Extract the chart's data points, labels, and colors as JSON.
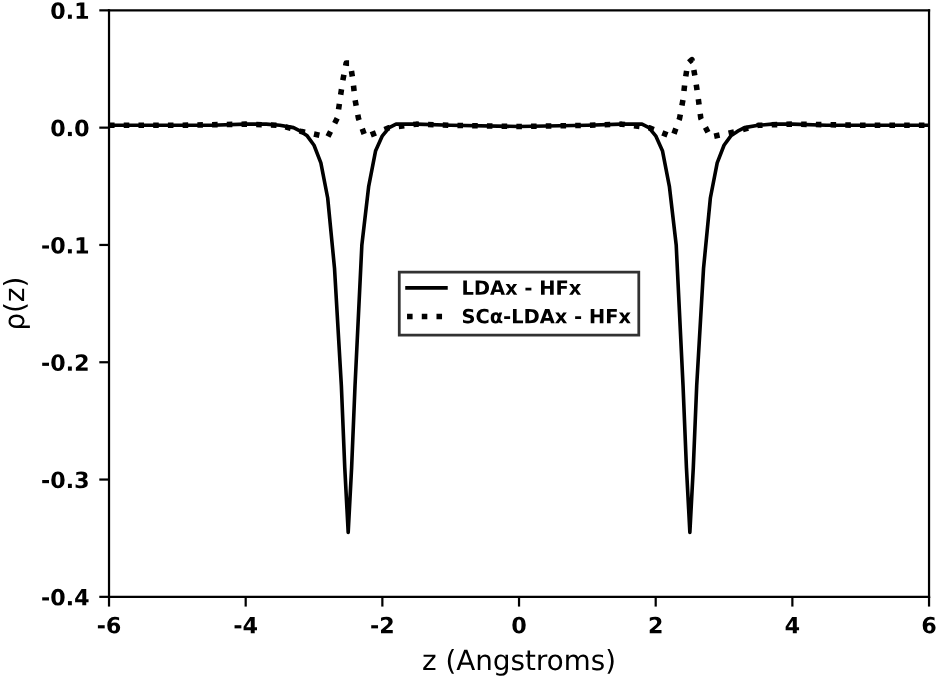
{
  "chart_data": {
    "type": "line",
    "xlabel": "z (Angstroms)",
    "ylabel": "ρ(z)",
    "xlim": [
      -6,
      6
    ],
    "ylim": [
      -0.4,
      0.1
    ],
    "xticks": [
      -6,
      -4,
      -2,
      0,
      2,
      4,
      6
    ],
    "yticks": [
      0.1,
      {
        "value": 0,
        "label": "0.0"
      },
      -0.1,
      -0.2,
      -0.3,
      -0.4
    ],
    "grid": false,
    "legend": "center",
    "series": [
      {
        "name": "LDAx - HFx",
        "color": "#000000",
        "line_style": "solid",
        "x": [
          -6,
          -5,
          -4.5,
          -4,
          -3.7,
          -3.5,
          -3.3,
          -3.2,
          -3.1,
          -3.0,
          -2.9,
          -2.8,
          -2.7,
          -2.6,
          -2.55,
          -2.5,
          -2.45,
          -2.4,
          -2.3,
          -2.2,
          -2.1,
          -2.0,
          -1.9,
          -1.8,
          -1.5,
          -1.0,
          0,
          1.0,
          1.5,
          1.8,
          1.9,
          2.0,
          2.1,
          2.2,
          2.3,
          2.4,
          2.45,
          2.5,
          2.55,
          2.6,
          2.7,
          2.8,
          2.9,
          3.0,
          3.1,
          3.2,
          3.3,
          3.5,
          3.7,
          4,
          4.5,
          5,
          6
        ],
        "values": [
          0.002,
          0.002,
          0.002,
          0.003,
          0.003,
          0.002,
          0.0,
          -0.003,
          -0.007,
          -0.015,
          -0.03,
          -0.06,
          -0.12,
          -0.22,
          -0.29,
          -0.345,
          -0.29,
          -0.22,
          -0.1,
          -0.05,
          -0.02,
          -0.007,
          0.0,
          0.003,
          0.003,
          0.002,
          0.001,
          0.002,
          0.003,
          0.003,
          0.0,
          -0.007,
          -0.02,
          -0.05,
          -0.1,
          -0.22,
          -0.29,
          -0.345,
          -0.29,
          -0.22,
          -0.12,
          -0.06,
          -0.03,
          -0.015,
          -0.007,
          -0.003,
          0.0,
          0.002,
          0.003,
          0.003,
          0.002,
          0.002,
          0.002
        ]
      },
      {
        "name": "SCα-LDAx - HFx",
        "color": "#000000",
        "line_style": "dotted",
        "x": [
          -6,
          -5,
          -4,
          -3.5,
          -3.2,
          -2.8,
          -2.66,
          -2.62,
          -2.58,
          -2.53,
          -2.47,
          -2.43,
          -2.4,
          -2.35,
          -2.25,
          -1.9,
          -1.5,
          -1,
          0,
          1,
          1.5,
          1.9,
          2.25,
          2.35,
          2.4,
          2.43,
          2.47,
          2.53,
          2.58,
          2.62,
          2.66,
          2.8,
          3.2,
          3.5,
          4,
          5,
          6
        ],
        "values": [
          0.002,
          0.002,
          0.003,
          0.002,
          -0.003,
          -0.008,
          0.008,
          0.024,
          0.04,
          0.055,
          0.055,
          0.04,
          0.024,
          0.008,
          -0.008,
          0.0,
          0.003,
          0.002,
          0.001,
          0.002,
          0.003,
          0.0,
          -0.008,
          0.008,
          0.024,
          0.04,
          0.055,
          0.058,
          0.042,
          0.026,
          0.008,
          -0.008,
          -0.003,
          0.002,
          0.003,
          0.002,
          0.002
        ]
      }
    ]
  }
}
